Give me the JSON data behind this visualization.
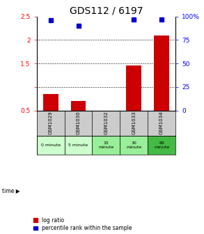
{
  "title": "GDS112 / 6197",
  "samples": [
    "GSM1029",
    "GSM1030",
    "GSM1032",
    "GSM1033",
    "GSM1034"
  ],
  "log_ratio": [
    0.85,
    0.7,
    0.0,
    1.45,
    2.1
  ],
  "percentile_rank": [
    96,
    90,
    0,
    97,
    97
  ],
  "bar_color": "#cc0000",
  "dot_color": "#0000cc",
  "ylim_left": [
    0.5,
    2.5
  ],
  "ylim_right": [
    0,
    100
  ],
  "yticks_left": [
    0.5,
    1.0,
    1.5,
    2.0,
    2.5
  ],
  "ytick_labels_left": [
    "0.5",
    "",
    "1.5",
    "2",
    "2.5"
  ],
  "yticks_right": [
    0,
    25,
    50,
    75,
    100
  ],
  "ytick_labels_right": [
    "0",
    "25",
    "50",
    "75",
    "100%"
  ],
  "dotted_lines": [
    1.0,
    1.5,
    2.0
  ],
  "time_labels": [
    "0 minute",
    "5 minute",
    "15\nminute",
    "30\nminute",
    "60\nminute"
  ],
  "time_colors": [
    "#ccffcc",
    "#ccffcc",
    "#99ee99",
    "#99ee99",
    "#44bb44"
  ],
  "sample_bg_color": "#cccccc",
  "legend_log_ratio": "log ratio",
  "legend_percentile": "percentile rank within the sample",
  "background_color": "#ffffff",
  "title_fontsize": 10,
  "tick_fontsize": 6.5,
  "bar_width": 0.55
}
